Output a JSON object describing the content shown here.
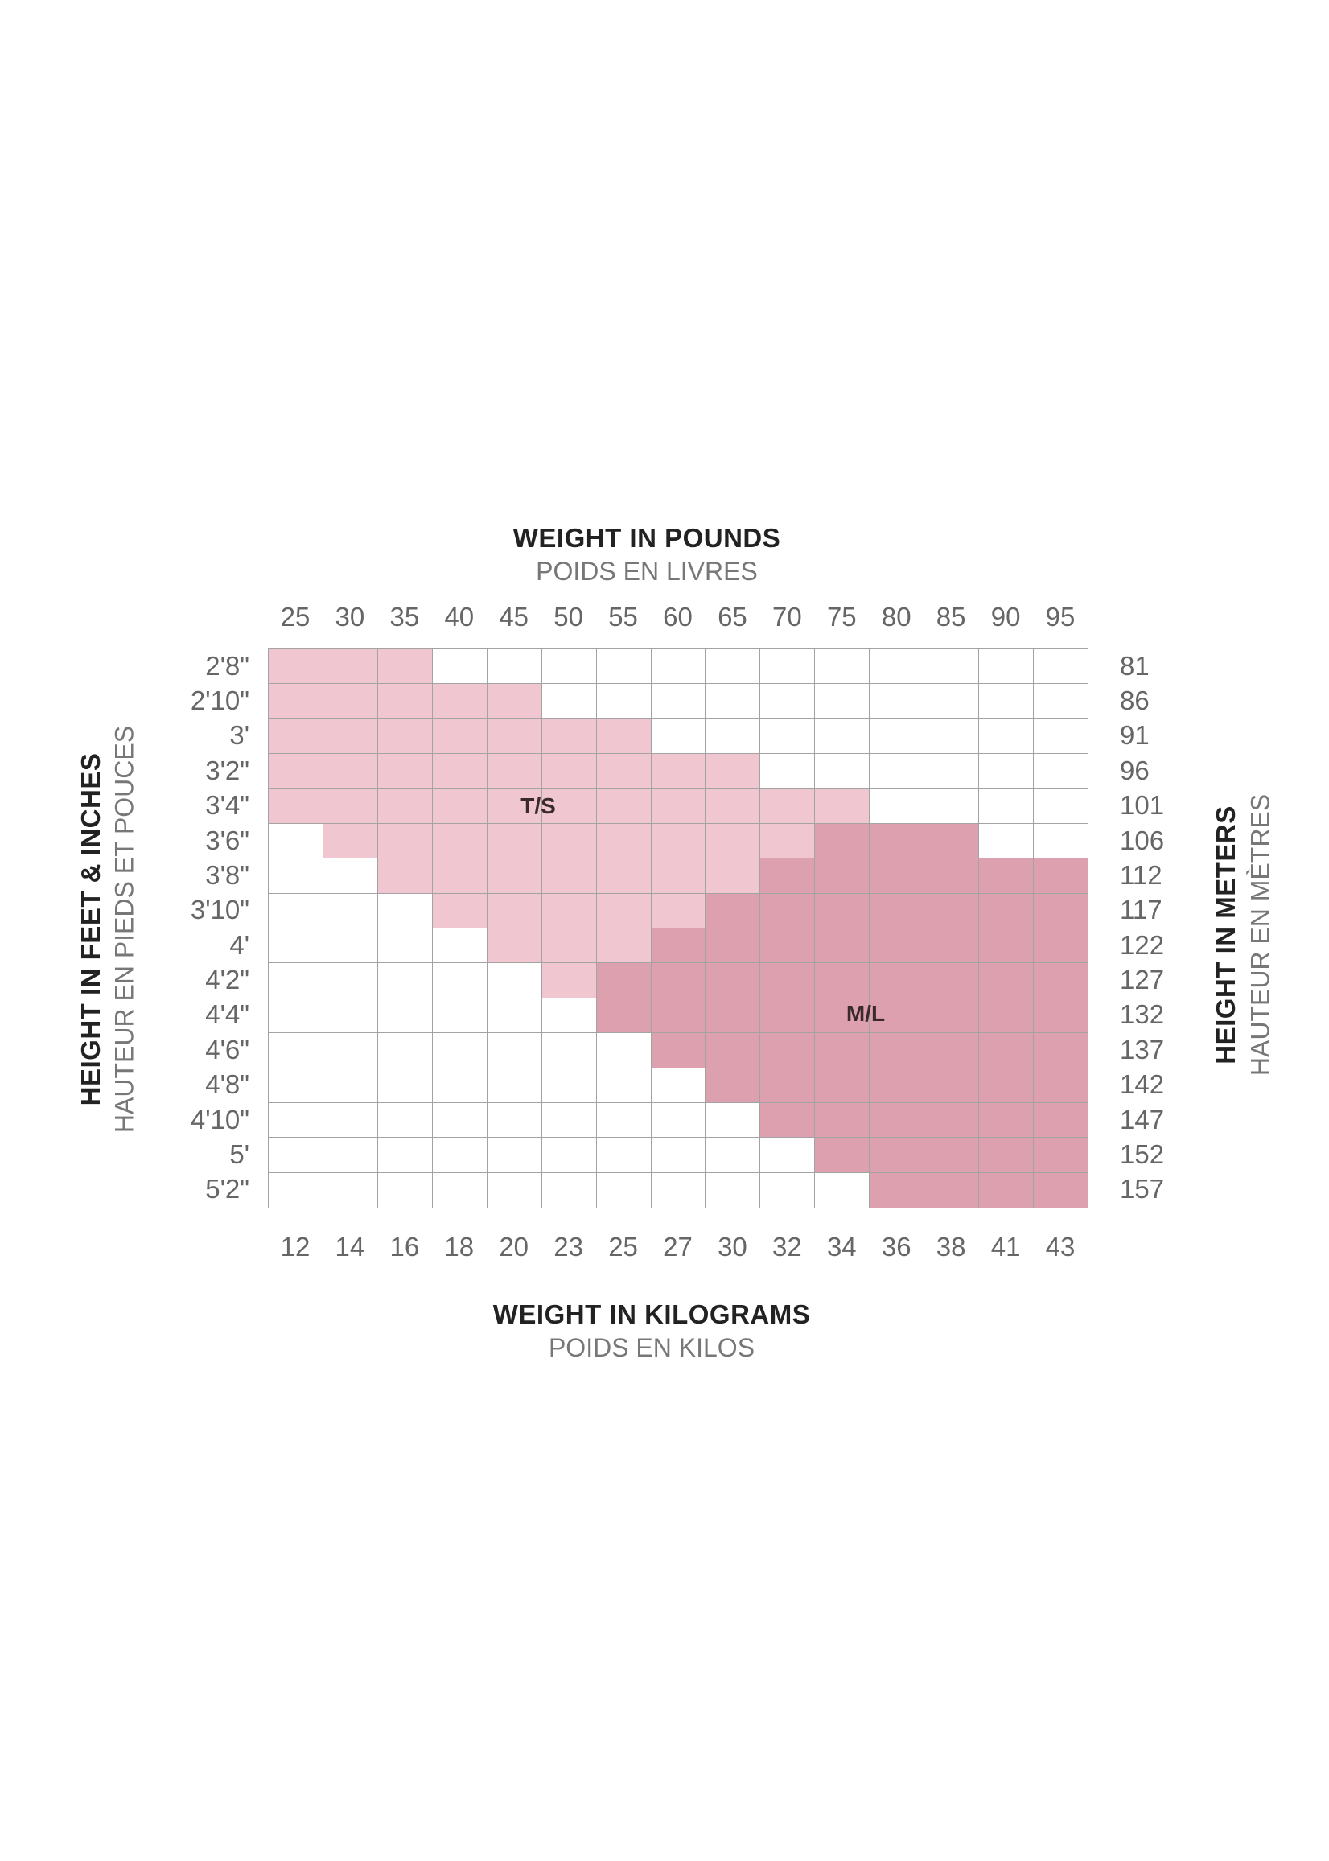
{
  "chart_data": {
    "type": "heatmap",
    "top_axis": {
      "title": "WEIGHT IN POUNDS",
      "subtitle": "POIDS EN LIVRES",
      "ticks": [
        "25",
        "30",
        "35",
        "40",
        "45",
        "50",
        "55",
        "60",
        "65",
        "70",
        "75",
        "80",
        "85",
        "90",
        "95"
      ]
    },
    "bottom_axis": {
      "title": "WEIGHT IN KILOGRAMS",
      "subtitle": "POIDS EN KILOS",
      "ticks": [
        "12",
        "14",
        "16",
        "18",
        "20",
        "23",
        "25",
        "27",
        "30",
        "32",
        "34",
        "36",
        "38",
        "41",
        "43"
      ]
    },
    "left_axis": {
      "title": "HEIGHT IN FEET & INCHES",
      "subtitle": "HAUTEUR EN PIEDS ET POUCES",
      "ticks": [
        "2'8\"",
        "2'10\"",
        "3'",
        "3'2\"",
        "3'4\"",
        "3'6\"",
        "3'8\"",
        "3'10\"",
        "4'",
        "4'2\"",
        "4'4\"",
        "4'6\"",
        "4'8\"",
        "4'10\"",
        "5'",
        "5'2\""
      ]
    },
    "right_axis": {
      "title": "HEIGHT IN METERS",
      "subtitle": "HAUTEUR EN MÈTRES",
      "ticks": [
        "81",
        "86",
        "91",
        "96",
        "101",
        "106",
        "112",
        "117",
        "122",
        "127",
        "132",
        "137",
        "142",
        "147",
        "152",
        "157"
      ]
    },
    "size_labels": {
      "ts": "T/S",
      "ml": "M/L"
    },
    "colors": {
      "ts": "#f0c6d0",
      "ml": "#dda0ae",
      "empty": "#ffffff",
      "grid": "#a3a3a3"
    },
    "legend_note": "cells: 0 = none, 1 = T/S, 2 = M/L; rows = heights top to bottom, columns = weights left to right",
    "cells": [
      [
        1,
        1,
        1,
        0,
        0,
        0,
        0,
        0,
        0,
        0,
        0,
        0,
        0,
        0,
        0
      ],
      [
        1,
        1,
        1,
        1,
        1,
        0,
        0,
        0,
        0,
        0,
        0,
        0,
        0,
        0,
        0
      ],
      [
        1,
        1,
        1,
        1,
        1,
        1,
        1,
        0,
        0,
        0,
        0,
        0,
        0,
        0,
        0
      ],
      [
        1,
        1,
        1,
        1,
        1,
        1,
        1,
        1,
        1,
        0,
        0,
        0,
        0,
        0,
        0
      ],
      [
        1,
        1,
        1,
        1,
        1,
        1,
        1,
        1,
        1,
        1,
        1,
        0,
        0,
        0,
        0
      ],
      [
        0,
        1,
        1,
        1,
        1,
        1,
        1,
        1,
        1,
        1,
        2,
        2,
        2,
        0,
        0
      ],
      [
        0,
        0,
        1,
        1,
        1,
        1,
        1,
        1,
        1,
        2,
        2,
        2,
        2,
        2,
        2
      ],
      [
        0,
        0,
        0,
        1,
        1,
        1,
        1,
        1,
        2,
        2,
        2,
        2,
        2,
        2,
        2
      ],
      [
        0,
        0,
        0,
        0,
        1,
        1,
        1,
        2,
        2,
        2,
        2,
        2,
        2,
        2,
        2
      ],
      [
        0,
        0,
        0,
        0,
        0,
        1,
        2,
        2,
        2,
        2,
        2,
        2,
        2,
        2,
        2
      ],
      [
        0,
        0,
        0,
        0,
        0,
        0,
        2,
        2,
        2,
        2,
        2,
        2,
        2,
        2,
        2
      ],
      [
        0,
        0,
        0,
        0,
        0,
        0,
        0,
        2,
        2,
        2,
        2,
        2,
        2,
        2,
        2
      ],
      [
        0,
        0,
        0,
        0,
        0,
        0,
        0,
        0,
        2,
        2,
        2,
        2,
        2,
        2,
        2
      ],
      [
        0,
        0,
        0,
        0,
        0,
        0,
        0,
        0,
        0,
        2,
        2,
        2,
        2,
        2,
        2
      ],
      [
        0,
        0,
        0,
        0,
        0,
        0,
        0,
        0,
        0,
        0,
        2,
        2,
        2,
        2,
        2
      ],
      [
        0,
        0,
        0,
        0,
        0,
        0,
        0,
        0,
        0,
        0,
        0,
        2,
        2,
        2,
        2
      ]
    ]
  }
}
